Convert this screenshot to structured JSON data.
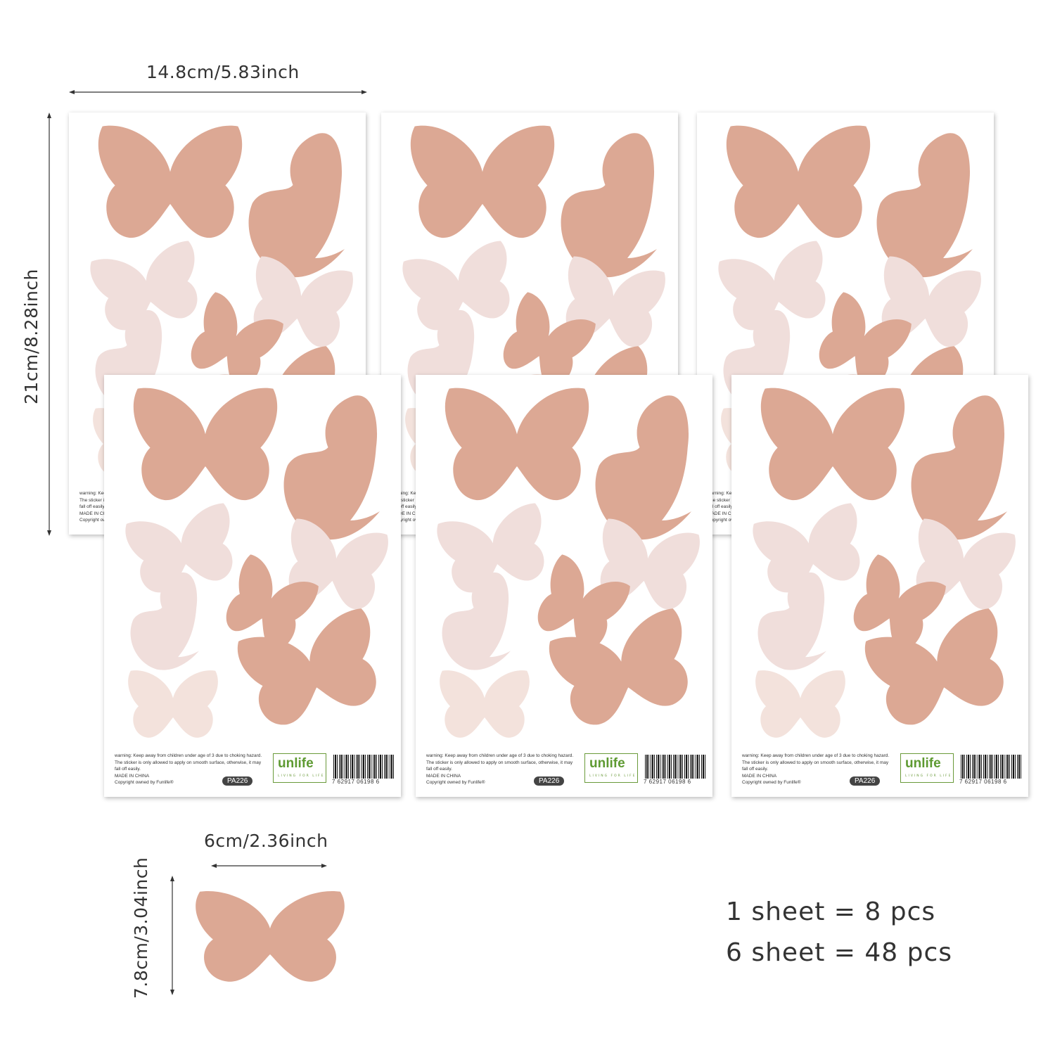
{
  "dimensions": {
    "sheet_width": "14.8cm/5.83inch",
    "sheet_height": "21cm/8.28inch",
    "piece_width": "6cm/2.36inch",
    "piece_height": "7.8cm/3.04inch"
  },
  "sheet": {
    "warning": "warning: Keep away from children under age of 3 due to choking hazard. The sticker is only allowed to apply on smooth surface, otherwise, it may fall off easily.",
    "origin": "MADE IN CHINA",
    "copyright": "Copyright owned by Funlife®",
    "product_code": "PA226",
    "logo_text": "unlife",
    "logo_tagline": "LIVING FOR LIFE",
    "barcode_number": "7  62917  06198  6"
  },
  "counts": {
    "per_sheet": "1 sheet = 8 pcs",
    "total": "6 sheet = 48 pcs"
  },
  "colors": {
    "dark": "#dca894",
    "light": "#f0dedb",
    "lightest": "#f3e2dc"
  }
}
